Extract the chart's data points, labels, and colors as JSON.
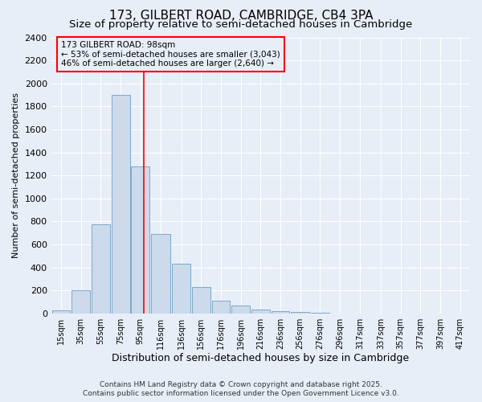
{
  "title1": "173, GILBERT ROAD, CAMBRIDGE, CB4 3PA",
  "title2": "Size of property relative to semi-detached houses in Cambridge",
  "xlabel": "Distribution of semi-detached houses by size in Cambridge",
  "ylabel": "Number of semi-detached properties",
  "bin_labels": [
    "15sqm",
    "35sqm",
    "55sqm",
    "75sqm",
    "95sqm",
    "116sqm",
    "136sqm",
    "156sqm",
    "176sqm",
    "196sqm",
    "216sqm",
    "236sqm",
    "256sqm",
    "276sqm",
    "296sqm",
    "317sqm",
    "337sqm",
    "357sqm",
    "377sqm",
    "397sqm",
    "417sqm"
  ],
  "bin_edges": [
    5,
    25,
    45,
    65,
    85,
    105,
    126,
    146,
    166,
    186,
    206,
    226,
    246,
    266,
    286,
    306,
    327,
    347,
    367,
    387,
    407,
    427
  ],
  "bar_heights": [
    25,
    200,
    775,
    1900,
    1275,
    690,
    435,
    230,
    110,
    65,
    35,
    20,
    15,
    5,
    0,
    0,
    0,
    0,
    0,
    0,
    0
  ],
  "bar_color": "#ccdaeb",
  "bar_edgecolor": "#7aaac8",
  "background_color": "#e8eef8",
  "red_line_x": 98,
  "annotation_title": "173 GILBERT ROAD: 98sqm",
  "annotation_line1": "← 53% of semi-detached houses are smaller (3,043)",
  "annotation_line2": "46% of semi-detached houses are larger (2,640) →",
  "ylim_max": 2400,
  "yticks": [
    0,
    200,
    400,
    600,
    800,
    1000,
    1200,
    1400,
    1600,
    1800,
    2000,
    2200,
    2400
  ],
  "footer1": "Contains HM Land Registry data © Crown copyright and database right 2025.",
  "footer2": "Contains public sector information licensed under the Open Government Licence v3.0.",
  "title1_fontsize": 11,
  "title2_fontsize": 9.5,
  "axis_fontsize": 8,
  "xlabel_fontsize": 9,
  "tick_fontsize": 7,
  "annotation_fontsize": 7.5,
  "footer_fontsize": 6.5
}
